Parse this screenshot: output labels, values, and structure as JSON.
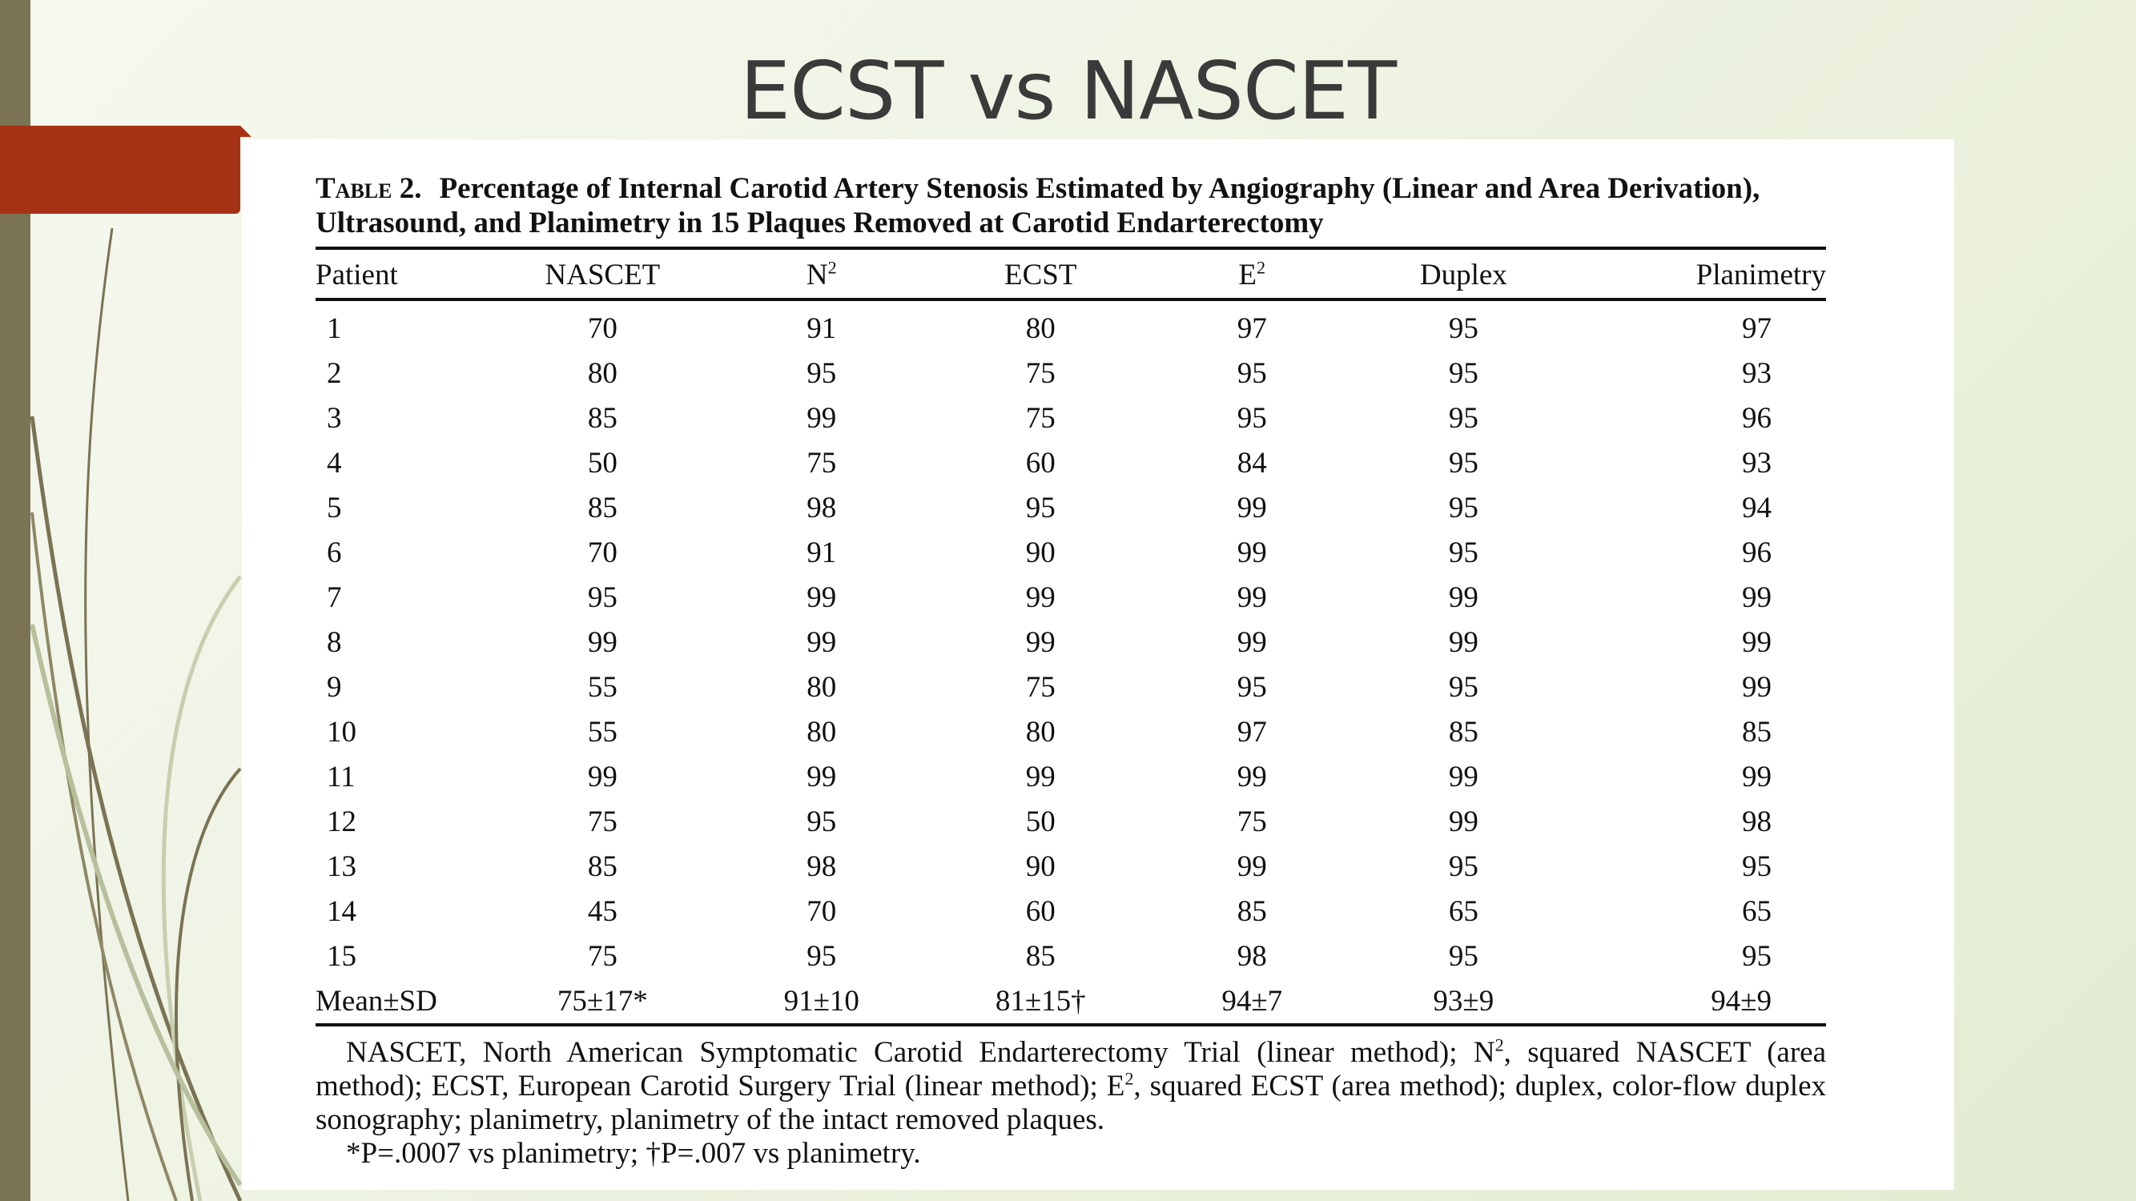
{
  "slide": {
    "title": "ECST vs NASCET"
  },
  "table": {
    "label": "Table 2.",
    "caption": "Percentage of Internal Carotid Artery Stenosis Estimated by Angiography (Linear and Area Derivation), Ultrasound, and Planimetry in 15 Plaques Removed at Carotid Endarterectomy",
    "headers": {
      "patient": "Patient",
      "nascet": "NASCET",
      "n2_base": "N",
      "n2_sup": "2",
      "ecst": "ECST",
      "e2_base": "E",
      "e2_sup": "2",
      "duplex": "Duplex",
      "planimetry": "Planimetry"
    },
    "rows": [
      [
        "1",
        "70",
        "91",
        "80",
        "97",
        "95",
        "97"
      ],
      [
        "2",
        "80",
        "95",
        "75",
        "95",
        "95",
        "93"
      ],
      [
        "3",
        "85",
        "99",
        "75",
        "95",
        "95",
        "96"
      ],
      [
        "4",
        "50",
        "75",
        "60",
        "84",
        "95",
        "93"
      ],
      [
        "5",
        "85",
        "98",
        "95",
        "99",
        "95",
        "94"
      ],
      [
        "6",
        "70",
        "91",
        "90",
        "99",
        "95",
        "96"
      ],
      [
        "7",
        "95",
        "99",
        "99",
        "99",
        "99",
        "99"
      ],
      [
        "8",
        "99",
        "99",
        "99",
        "99",
        "99",
        "99"
      ],
      [
        "9",
        "55",
        "80",
        "75",
        "95",
        "95",
        "99"
      ],
      [
        "10",
        "55",
        "80",
        "80",
        "97",
        "85",
        "85"
      ],
      [
        "11",
        "99",
        "99",
        "99",
        "99",
        "99",
        "99"
      ],
      [
        "12",
        "75",
        "95",
        "50",
        "75",
        "99",
        "98"
      ],
      [
        "13",
        "85",
        "98",
        "90",
        "99",
        "95",
        "95"
      ],
      [
        "14",
        "45",
        "70",
        "60",
        "85",
        "65",
        "65"
      ],
      [
        "15",
        "75",
        "95",
        "85",
        "98",
        "95",
        "95"
      ]
    ],
    "mean_row": [
      "Mean±SD",
      "75±17*",
      "91±10",
      "81±15†",
      "94±7",
      "93±9",
      "94±9"
    ],
    "footnote": {
      "part1": "NASCET, North American Symptomatic Carotid Endarterectomy Trial (linear method); N",
      "sup1": "2",
      "part2": ", squared NASCET (area method); ECST, European Carotid Surgery Trial (linear method); E",
      "sup2": "2",
      "part3": ", squared ECST (area method); duplex, color-flow duplex sonography; planimetry, planimetry of the intact removed plaques.",
      "p_values": "*P=.0007 vs planimetry; †P=.007 vs planimetry."
    }
  }
}
